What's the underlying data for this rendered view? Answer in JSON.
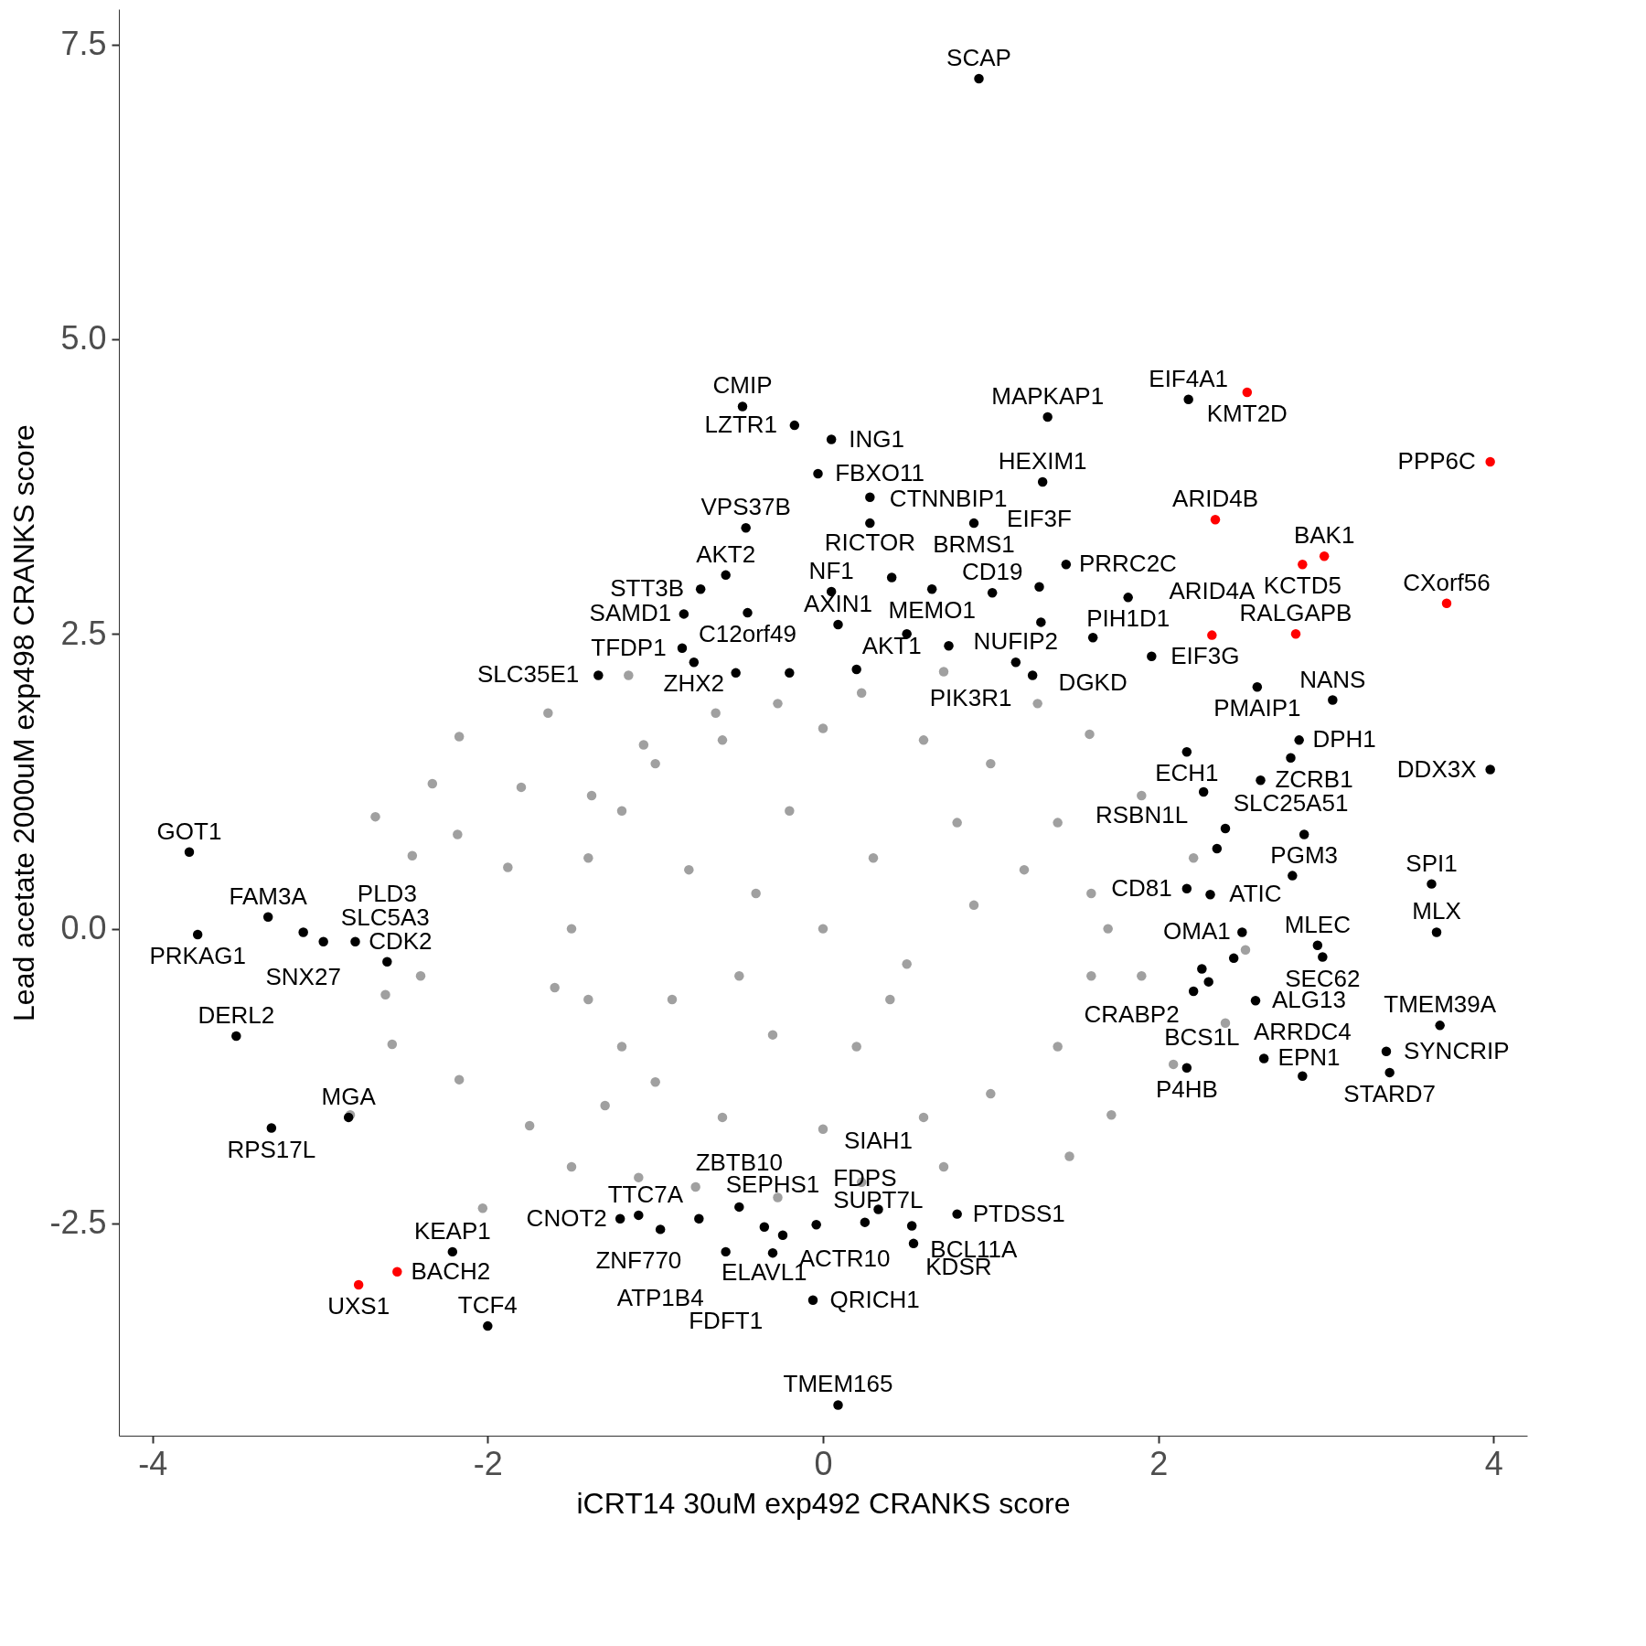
{
  "chart_data": {
    "type": "scatter",
    "xlabel": "iCRT14 30uM exp492 CRANKS score",
    "ylabel": "Lead acetate 2000uM exp498 CRANKS score",
    "xlim": [
      -4.2,
      4.2
    ],
    "ylim": [
      -4.3,
      7.8
    ],
    "xticks": [
      -4,
      -2,
      {
        "value": 0,
        "label": "0"
      },
      2,
      4
    ],
    "yticks": [
      -2.5,
      {
        "value": 0,
        "label": "0.0"
      },
      2.5,
      {
        "value": 5,
        "label": "5.0"
      },
      7.5
    ],
    "marker": "circle",
    "series": [
      {
        "color": "#a0a0a0",
        "x": [
          -1.16,
          -1.64,
          -2.17,
          -2.33,
          -2.67,
          -2.45,
          -2.18,
          -1.88,
          -2.4,
          -2.61,
          -2.57,
          -2.17,
          -2.82,
          -2.03,
          -1.75,
          -1.5,
          -1.1,
          -0.76,
          -0.27,
          0.23,
          0.72,
          1.47,
          1.72,
          2.09,
          2.4,
          2.52,
          2.21,
          1.9,
          1.59,
          1.28,
          0.72,
          0.23,
          -0.27,
          -0.64,
          -1.07,
          -1.38,
          -1.5,
          -1.4,
          -1.4,
          -1.2,
          -1.2,
          -1.0,
          -1.0,
          -0.6,
          -0.6,
          0,
          0,
          0.6,
          0.6,
          1.0,
          1.0,
          1.4,
          1.4,
          1.6,
          1.6,
          1.7,
          -0.8,
          -0.5,
          0,
          0.3,
          0.5,
          -0.2,
          0.2,
          0.9,
          -0.9,
          0.8,
          -0.4,
          0.4,
          -1.6,
          -1.3,
          -0.3,
          1.2,
          1.9,
          -1.8
        ],
        "values": [
          2.15,
          1.83,
          1.63,
          1.23,
          0.95,
          0.62,
          0.8,
          0.52,
          -0.4,
          -0.56,
          -0.98,
          -1.28,
          -1.58,
          -2.37,
          -1.67,
          -2.02,
          -2.11,
          -2.19,
          -2.28,
          -2.15,
          -2.02,
          -1.93,
          -1.58,
          -1.15,
          -0.8,
          -0.18,
          0.6,
          1.13,
          1.65,
          1.91,
          2.18,
          2.0,
          1.91,
          1.83,
          1.56,
          1.13,
          0,
          0.6,
          -0.6,
          1.0,
          -1.0,
          1.4,
          -1.3,
          1.6,
          -1.6,
          1.7,
          -1.7,
          1.6,
          -1.6,
          1.4,
          -1.4,
          0.9,
          -1.0,
          0.3,
          -0.4,
          0,
          0.5,
          -0.4,
          0,
          0.6,
          -0.3,
          1.0,
          -1.0,
          0.2,
          -0.6,
          0.9,
          0.3,
          -0.6,
          -0.5,
          -1.5,
          -0.9,
          0.5,
          -0.4,
          1.2
        ]
      },
      {
        "color": "#000000",
        "x": [
          0.93,
          -0.48,
          -0.17,
          0.05,
          -0.03,
          0.28,
          0.28,
          1.34,
          2.18,
          1.31,
          0.9,
          0.65,
          1.45,
          1.29,
          1.82,
          -0.58,
          -0.46,
          -0.73,
          -0.45,
          0.05,
          0.41,
          -0.83,
          0.09,
          1.01,
          -0.84,
          -1.34,
          -0.77,
          1.15,
          1.61,
          1.25,
          1.96,
          2.59,
          3.04,
          2.17,
          2.84,
          2.79,
          2.61,
          3.98,
          2.27,
          2.87,
          -3.78,
          -3.31,
          -3.73,
          -3.1,
          -2.98,
          -2.79,
          -2.6,
          -3.5,
          -2.83,
          -3.29,
          -2.21,
          -2.0,
          2.17,
          2.31,
          2.5,
          2.98,
          2.95,
          3.63,
          3.66,
          3.68,
          3.36,
          3.38,
          2.86,
          2.17,
          2.63,
          2.26,
          2.21,
          2.58,
          -0.5,
          -0.35,
          -0.24,
          -0.74,
          -1.21,
          -1.1,
          -0.97,
          -0.58,
          -0.3,
          -0.04,
          -0.06,
          0.09,
          0.33,
          0.25,
          0.8,
          0.53,
          0.54,
          -0.52,
          -0.2,
          0.2,
          0.5,
          0.75,
          1.3,
          2.4,
          2.35,
          2.45,
          2.3,
          2.8
        ],
        "values": [
          7.21,
          4.43,
          4.27,
          4.15,
          3.86,
          3.66,
          3.44,
          4.34,
          4.49,
          3.79,
          3.44,
          2.88,
          3.09,
          2.9,
          2.81,
          3.0,
          3.4,
          2.88,
          2.68,
          2.86,
          2.98,
          2.67,
          2.58,
          2.85,
          2.38,
          2.15,
          2.26,
          2.26,
          2.47,
          2.15,
          2.31,
          2.05,
          1.94,
          1.5,
          1.6,
          1.45,
          1.26,
          1.35,
          1.16,
          0.8,
          0.65,
          0.1,
          -0.05,
          -0.03,
          -0.11,
          -0.11,
          -0.28,
          -0.91,
          -1.6,
          -1.69,
          -2.74,
          -3.37,
          0.34,
          0.29,
          -0.03,
          -0.24,
          -0.14,
          0.38,
          -0.03,
          -0.82,
          -1.04,
          -1.22,
          -1.25,
          -1.18,
          -1.1,
          -0.34,
          -0.53,
          -0.61,
          -2.36,
          -2.53,
          -2.6,
          -2.46,
          -2.46,
          -2.43,
          -2.55,
          -2.74,
          -2.75,
          -2.51,
          -3.15,
          -4.04,
          -2.38,
          -2.49,
          -2.42,
          -2.52,
          -2.67,
          2.17,
          2.17,
          2.2,
          2.5,
          2.4,
          2.6,
          0.85,
          0.68,
          -0.25,
          -0.45,
          0.45
        ]
      },
      {
        "color": "#ff0000",
        "x": [
          2.53,
          3.98,
          2.34,
          2.99,
          2.86,
          3.72,
          2.82,
          2.32,
          -2.77,
          -2.54
        ],
        "values": [
          4.55,
          3.96,
          3.47,
          3.16,
          3.09,
          2.76,
          2.5,
          2.49,
          -3.02,
          -2.91
        ]
      }
    ],
    "annotations": [
      {
        "text": "SCAP",
        "x": 0.93,
        "y": 7.21
      },
      {
        "text": "CMIP",
        "x": -0.48,
        "y": 4.43
      },
      {
        "text": "LZTR1",
        "x": -0.17,
        "y": 4.27
      },
      {
        "text": "ING1",
        "x": 0.05,
        "y": 4.15
      },
      {
        "text": "FBXO11",
        "x": -0.03,
        "y": 3.86
      },
      {
        "text": "RICTOR",
        "x": 0.28,
        "y": 3.66
      },
      {
        "text": "CTNNBIP1",
        "x": 0.28,
        "y": 3.44
      },
      {
        "text": "MAPKAP1",
        "x": 1.34,
        "y": 4.34
      },
      {
        "text": "EIF4A1",
        "x": 2.18,
        "y": 4.49
      },
      {
        "text": "HEXIM1",
        "x": 1.31,
        "y": 3.79
      },
      {
        "text": "BRMS1",
        "x": 0.9,
        "y": 3.44
      },
      {
        "text": "MEMO1",
        "x": 0.65,
        "y": 2.88
      },
      {
        "text": "PRRC2C",
        "x": 1.45,
        "y": 3.09
      },
      {
        "text": "EIF3F",
        "x": 1.29,
        "y": 2.9
      },
      {
        "text": "PIH1D1",
        "x": 1.82,
        "y": 2.81
      },
      {
        "text": "AKT2",
        "x": -0.58,
        "y": 3.0
      },
      {
        "text": "VPS37B",
        "x": -0.46,
        "y": 3.4
      },
      {
        "text": "STT3B",
        "x": -0.73,
        "y": 2.88
      },
      {
        "text": "C12orf49",
        "x": -0.45,
        "y": 2.68
      },
      {
        "text": "NF1",
        "x": 0.05,
        "y": 2.86
      },
      {
        "text": "AKT1",
        "x": 0.41,
        "y": 2.98
      },
      {
        "text": "SAMD1",
        "x": -0.83,
        "y": 2.67
      },
      {
        "text": "AXIN1",
        "x": 0.09,
        "y": 2.58
      },
      {
        "text": "CD19",
        "x": 1.01,
        "y": 2.85
      },
      {
        "text": "TFDP1",
        "x": -0.84,
        "y": 2.38
      },
      {
        "text": "SLC35E1",
        "x": -1.34,
        "y": 2.15
      },
      {
        "text": "ZHX2",
        "x": -0.77,
        "y": 2.26
      },
      {
        "text": "NUFIP2",
        "x": 1.15,
        "y": 2.26
      },
      {
        "text": "DGKD",
        "x": 1.61,
        "y": 2.47
      },
      {
        "text": "PIK3R1",
        "x": 1.25,
        "y": 2.15
      },
      {
        "text": "EIF3G",
        "x": 1.96,
        "y": 2.31
      },
      {
        "text": "PMAIP1",
        "x": 2.59,
        "y": 2.05
      },
      {
        "text": "NANS",
        "x": 3.04,
        "y": 1.94
      },
      {
        "text": "ECH1",
        "x": 2.17,
        "y": 1.5
      },
      {
        "text": "DPH1",
        "x": 2.84,
        "y": 1.6
      },
      {
        "text": "SLC25A51",
        "x": 2.79,
        "y": 1.45
      },
      {
        "text": "ZCRB1",
        "x": 2.61,
        "y": 1.26
      },
      {
        "text": "DDX3X",
        "x": 3.98,
        "y": 1.35
      },
      {
        "text": "RSBN1L",
        "x": 2.27,
        "y": 1.16
      },
      {
        "text": "PGM3",
        "x": 2.87,
        "y": 0.8
      },
      {
        "text": "GOT1",
        "x": -3.78,
        "y": 0.65
      },
      {
        "text": "FAM3A",
        "x": -3.31,
        "y": 0.1
      },
      {
        "text": "PRKAG1",
        "x": -3.73,
        "y": -0.05
      },
      {
        "text": "SNX27",
        "x": -3.1,
        "y": -0.03
      },
      {
        "text": "SLC5A3",
        "x": -2.98,
        "y": -0.11
      },
      {
        "text": "CDK2",
        "x": -2.79,
        "y": -0.11
      },
      {
        "text": "PLD3",
        "x": -2.6,
        "y": -0.28
      },
      {
        "text": "DERL2",
        "x": -3.5,
        "y": -0.91
      },
      {
        "text": "MGA",
        "x": -2.83,
        "y": -1.6
      },
      {
        "text": "RPS17L",
        "x": -3.29,
        "y": -1.69
      },
      {
        "text": "KEAP1",
        "x": -2.21,
        "y": -2.74
      },
      {
        "text": "TCF4",
        "x": -2.0,
        "y": -3.37
      },
      {
        "text": "CD81",
        "x": 2.17,
        "y": 0.34
      },
      {
        "text": "ATIC",
        "x": 2.31,
        "y": 0.29
      },
      {
        "text": "OMA1",
        "x": 2.5,
        "y": -0.03
      },
      {
        "text": "SEC62",
        "x": 2.98,
        "y": -0.24
      },
      {
        "text": "MLEC",
        "x": 2.95,
        "y": -0.14
      },
      {
        "text": "SPI1",
        "x": 3.63,
        "y": 0.38
      },
      {
        "text": "MLX",
        "x": 3.66,
        "y": -0.03
      },
      {
        "text": "TMEM39A",
        "x": 3.68,
        "y": -0.82
      },
      {
        "text": "SYNCRIP",
        "x": 3.36,
        "y": -1.04
      },
      {
        "text": "STARD7",
        "x": 3.38,
        "y": -1.22
      },
      {
        "text": "ARRDC4",
        "x": 2.86,
        "y": -1.25
      },
      {
        "text": "P4HB",
        "x": 2.17,
        "y": -1.18
      },
      {
        "text": "EPN1",
        "x": 2.63,
        "y": -1.1
      },
      {
        "text": "BCS1L",
        "x": 2.26,
        "y": -0.34
      },
      {
        "text": "CRABP2",
        "x": 2.21,
        "y": -0.53
      },
      {
        "text": "ALG13",
        "x": 2.58,
        "y": -0.61
      },
      {
        "text": "ZBTB10",
        "x": -0.5,
        "y": -2.36
      },
      {
        "text": "ELAVL1",
        "x": -0.35,
        "y": -2.53
      },
      {
        "text": "ACTR10",
        "x": -0.24,
        "y": -2.6
      },
      {
        "text": "TTC7A",
        "x": -0.74,
        "y": -2.46
      },
      {
        "text": "CNOT2",
        "x": -1.21,
        "y": -2.46
      },
      {
        "text": "ZNF770",
        "x": -1.1,
        "y": -2.43
      },
      {
        "text": "ATP1B4",
        "x": -0.97,
        "y": -2.55
      },
      {
        "text": "FDFT1",
        "x": -0.58,
        "y": -2.74
      },
      {
        "text": "SEPHS1",
        "x": -0.3,
        "y": -2.75
      },
      {
        "text": "SUPT7L",
        "x": -0.04,
        "y": -2.51
      },
      {
        "text": "QRICH1",
        "x": -0.06,
        "y": -3.15
      },
      {
        "text": "TMEM165",
        "x": 0.09,
        "y": -4.04
      },
      {
        "text": "SIAH1",
        "x": 0.33,
        "y": -2.38
      },
      {
        "text": "FDPS",
        "x": 0.25,
        "y": -2.49
      },
      {
        "text": "PTDSS1",
        "x": 0.8,
        "y": -2.42
      },
      {
        "text": "BCL11A",
        "x": 0.53,
        "y": -2.52
      },
      {
        "text": "KDSR",
        "x": 0.54,
        "y": -2.67
      },
      {
        "text": "KMT2D",
        "x": 2.53,
        "y": 4.55
      },
      {
        "text": "PPP6C",
        "x": 3.98,
        "y": 3.96
      },
      {
        "text": "ARID4B",
        "x": 2.34,
        "y": 3.47
      },
      {
        "text": "BAK1",
        "x": 2.99,
        "y": 3.16
      },
      {
        "text": "KCTD5",
        "x": 2.86,
        "y": 3.09
      },
      {
        "text": "CXorf56",
        "x": 3.72,
        "y": 2.76
      },
      {
        "text": "RALGAPB",
        "x": 2.82,
        "y": 2.5
      },
      {
        "text": "ARID4A",
        "x": 2.32,
        "y": 2.49
      },
      {
        "text": "UXS1",
        "x": -2.77,
        "y": -3.02
      },
      {
        "text": "BACH2",
        "x": -2.54,
        "y": -2.91
      }
    ]
  }
}
